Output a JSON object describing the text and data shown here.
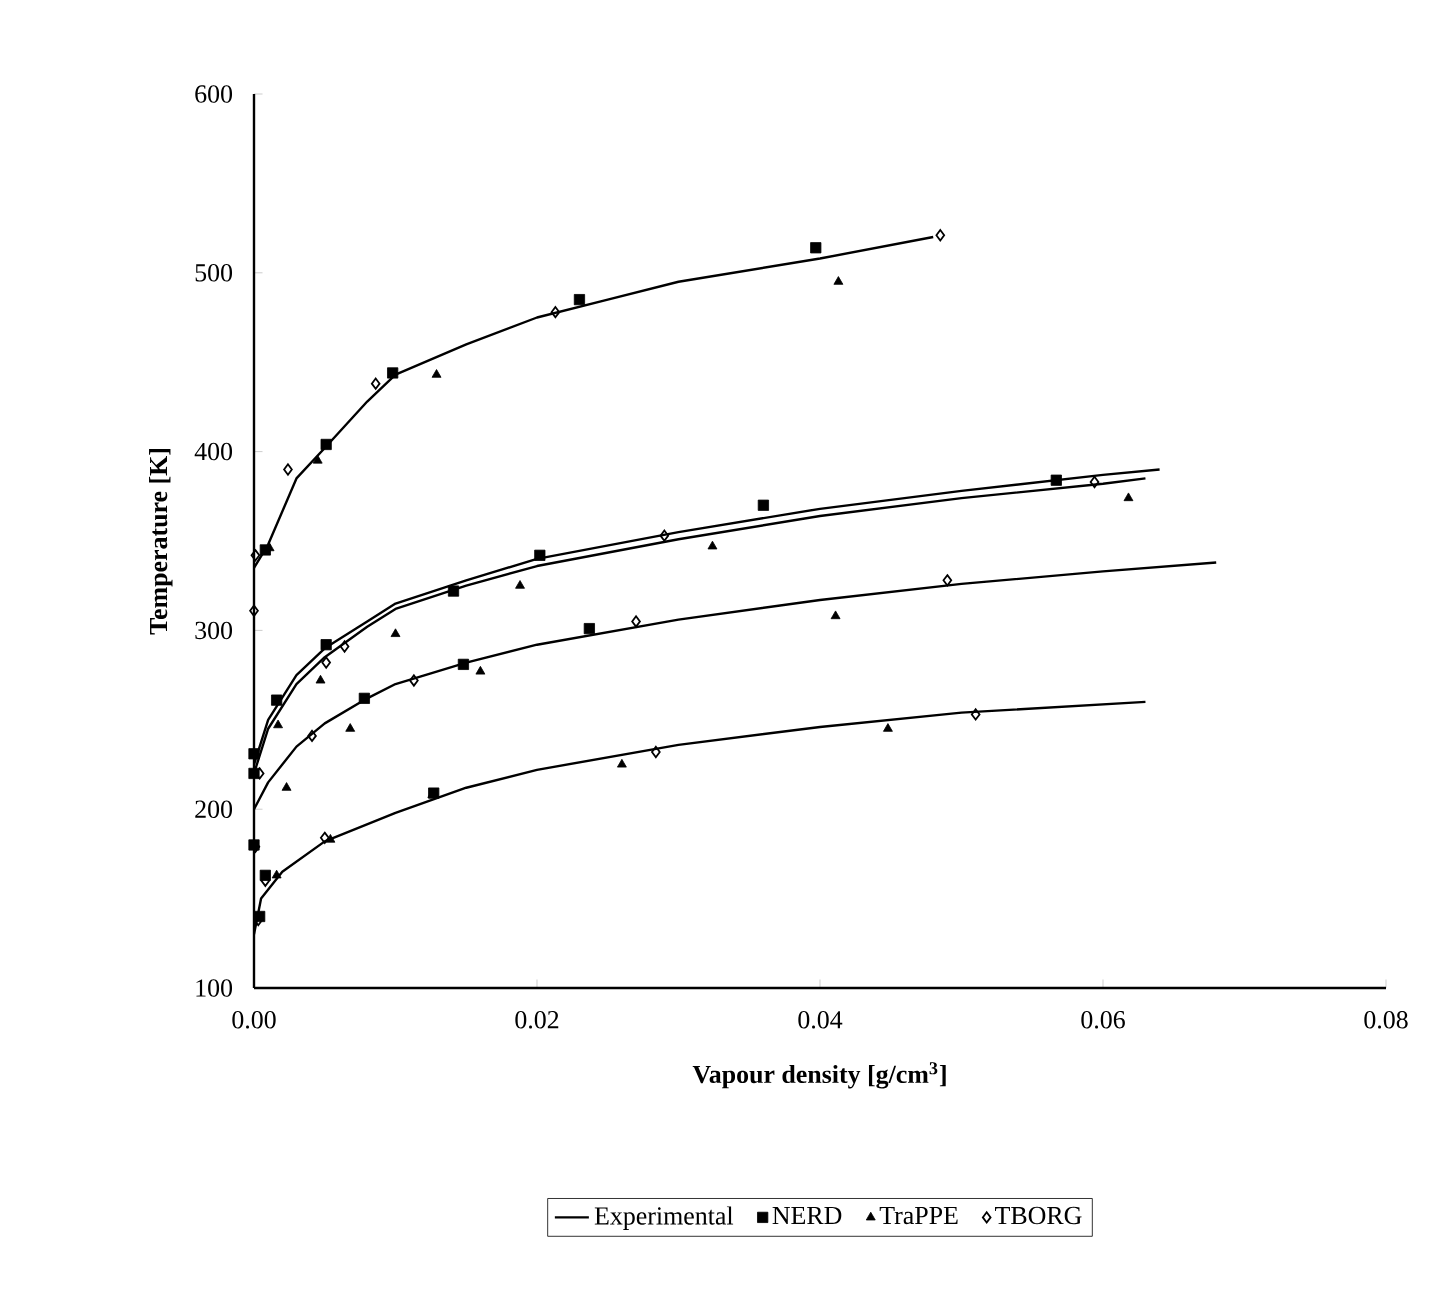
{
  "chart_data": {
    "type": "scatter",
    "xlabel": "Vapour density [g/cm$^{3}$]",
    "ylabel": "Temperature [K]",
    "xlim": [
      0,
      0.08
    ],
    "ylim": [
      100,
      600
    ],
    "xticks": [
      {
        "value": 0,
        "label": "0.00"
      },
      0.02,
      0.04,
      0.06,
      0.08
    ],
    "yticks": [
      100,
      200,
      300,
      400,
      500,
      600
    ],
    "grid": false,
    "legend": "bottom",
    "series": [
      {
        "name": "Experimental",
        "type": "line",
        "marker": "none",
        "line_style": "solid",
        "color": "#000000",
        "x": [
          0,
          0.001,
          0.003,
          0.005,
          0.008,
          0.01,
          0.015,
          0.02,
          0.025,
          0.03,
          0.04,
          0.048,
          null,
          0,
          0.001,
          0.003,
          0.005,
          0.008,
          0.01,
          0.015,
          0.02,
          0.03,
          0.04,
          0.05,
          0.06,
          0.064,
          null,
          0,
          0.001,
          0.003,
          0.005,
          0.008,
          0.01,
          0.015,
          0.02,
          0.03,
          0.04,
          0.05,
          0.06,
          0.063,
          null,
          0,
          0.001,
          0.003,
          0.005,
          0.008,
          0.01,
          0.015,
          0.02,
          0.03,
          0.04,
          0.05,
          0.06,
          0.068,
          null,
          0,
          0.0005,
          0.002,
          0.005,
          0.01,
          0.015,
          0.02,
          0.03,
          0.04,
          0.05,
          0.063
        ],
        "values": [
          335,
          348,
          385,
          402,
          428,
          443,
          460,
          475,
          485,
          495,
          508,
          520,
          null,
          225,
          250,
          275,
          290,
          305,
          315,
          328,
          340,
          355,
          368,
          378,
          387,
          390,
          null,
          220,
          245,
          270,
          285,
          302,
          312,
          325,
          336,
          351,
          364,
          374,
          382,
          385,
          null,
          200,
          215,
          235,
          248,
          262,
          270,
          282,
          292,
          306,
          317,
          326,
          333,
          338,
          null,
          130,
          150,
          165,
          182,
          198,
          212,
          222,
          236,
          246,
          254,
          260
        ]
      },
      {
        "name": "NERD",
        "type": "scatter",
        "marker": "square",
        "color": "#000000",
        "x": [
          0.0008,
          0.0051,
          0.0098,
          0.023,
          0.0397,
          0,
          0.0016,
          0.0051,
          0.0141,
          0.0202,
          0.036,
          0.0567,
          0,
          0.0078,
          0.0148,
          0.0237,
          0,
          0.0008,
          0.0004,
          0.0127
        ],
        "values": [
          345,
          404,
          444,
          485,
          514,
          231,
          261,
          292,
          322,
          342,
          370,
          384,
          220,
          262,
          281,
          301,
          180,
          163,
          140,
          209
        ]
      },
      {
        "name": "TraPPE",
        "type": "scatter",
        "marker": "triangle",
        "color": "#000000",
        "x": [
          0.0011,
          0.0045,
          0.0129,
          0.0413,
          0.0017,
          0.0047,
          0.01,
          0.0188,
          0.0324,
          0.0618,
          0.0023,
          0.0068,
          0.016,
          0.0411,
          0.0016,
          0.0054,
          0.0126,
          0.026,
          0.0448
        ],
        "values": [
          346,
          395,
          443,
          495,
          247,
          272,
          298,
          325,
          347,
          374,
          212,
          245,
          277,
          308,
          163,
          183,
          208,
          225,
          245
        ]
      },
      {
        "name": "TBORG",
        "type": "scatter",
        "marker": "diamond",
        "color": "#000000",
        "x": [
          0,
          0.0001,
          0.0024,
          0.0086,
          0.0213,
          0.0485,
          0.0041,
          0.0051,
          0.0064,
          0.029,
          0.0594,
          0.0004,
          0.005,
          0.0113,
          0.027,
          0.049,
          0.0001,
          0.0008,
          0.0003,
          0.0284,
          0.051
        ],
        "values": [
          311,
          342,
          390,
          438,
          478,
          521,
          241,
          282,
          291,
          353,
          383,
          220,
          184,
          272,
          305,
          328,
          179,
          160,
          138,
          232,
          253
        ]
      }
    ]
  }
}
